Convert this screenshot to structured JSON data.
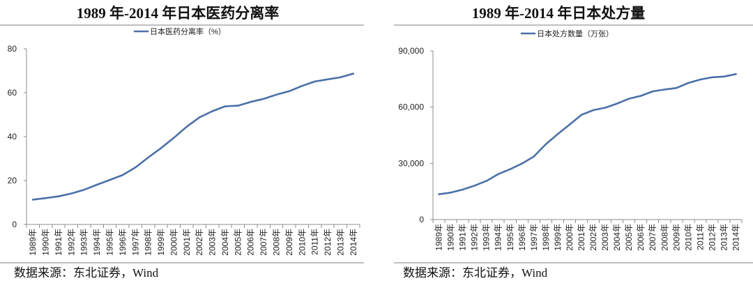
{
  "colors": {
    "series_line": "#4a70a8",
    "axis": "#8c8c8c",
    "text": "#222222"
  },
  "chart_data": [
    {
      "type": "line",
      "title": "1989 年-2014 年日本医药分离率",
      "categories": [
        "1989年",
        "1990年",
        "1991年",
        "1992年",
        "1993年",
        "1994年",
        "1995年",
        "1996年",
        "1997年",
        "1998年",
        "1999年",
        "2000年",
        "2001年",
        "2002年",
        "2003年",
        "2004年",
        "2005年",
        "2006年",
        "2007年",
        "2008年",
        "2009年",
        "2010年",
        "2011年",
        "2012年",
        "2013年",
        "2014年"
      ],
      "series": [
        {
          "name": "日本医药分离率（%）",
          "values": [
            11.3,
            12.0,
            12.8,
            14.1,
            15.8,
            18.1,
            20.3,
            22.5,
            26.0,
            30.5,
            34.8,
            39.5,
            44.5,
            48.8,
            51.6,
            53.8,
            54.1,
            55.8,
            57.2,
            59.1,
            60.7,
            63.1,
            65.1,
            66.1,
            67.0,
            68.7
          ]
        }
      ],
      "xlabel": "",
      "ylabel": "",
      "ylim": [
        0,
        80
      ],
      "yticks": [
        0,
        20,
        40,
        60,
        80
      ],
      "ytick_labels": [
        "0",
        "20",
        "40",
        "60",
        "80"
      ],
      "grid": false,
      "legend": "top-center",
      "source": "数据来源：东北证券，Wind"
    },
    {
      "type": "line",
      "title": "1989 年-2014 年日本处方量",
      "categories": [
        "1989年",
        "1990年",
        "1991年",
        "1992年",
        "1993年",
        "1994年",
        "1995年",
        "1996年",
        "1997年",
        "1998年",
        "1999年",
        "2000年",
        "2001年",
        "2002年",
        "2003年",
        "2004年",
        "2005年",
        "2006年",
        "2007年",
        "2008年",
        "2009年",
        "2010年",
        "2011年",
        "2012年",
        "2013年",
        "2014年"
      ],
      "series": [
        {
          "name": "日本处方数量（万张）",
          "values": [
            13500,
            14400,
            16000,
            18100,
            20600,
            24300,
            26900,
            29900,
            33700,
            40200,
            45600,
            50700,
            55900,
            58400,
            59700,
            61900,
            64500,
            66000,
            68400,
            69400,
            70200,
            72900,
            74700,
            75900,
            76300,
            77600
          ]
        }
      ],
      "xlabel": "",
      "ylabel": "",
      "ylim": [
        0,
        90000
      ],
      "yticks": [
        0,
        30000,
        60000,
        90000
      ],
      "ytick_labels": [
        "0",
        "30,000",
        "60,000",
        "90,000"
      ],
      "grid": false,
      "legend": "top-center",
      "source": "数据来源：东北证券，Wind"
    }
  ]
}
